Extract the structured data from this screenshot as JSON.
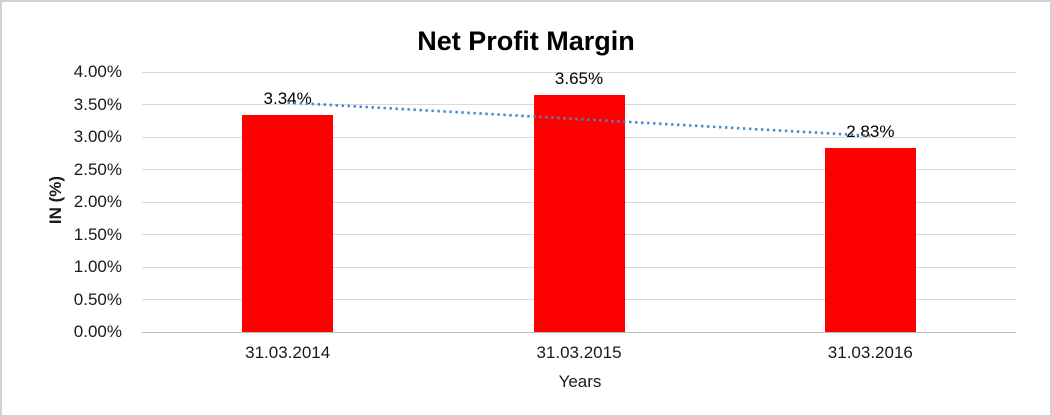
{
  "chart_data": {
    "type": "bar",
    "title": "Net Profit Margin",
    "categories": [
      "31.03.2014",
      "31.03.2015",
      "31.03.2016"
    ],
    "values": [
      3.34,
      3.65,
      2.83
    ],
    "data_labels": [
      "3.34%",
      "3.65%",
      "2.83%"
    ],
    "xlabel": "Years",
    "ylabel": "IN (%)",
    "ylim_percent": [
      0,
      4
    ],
    "ytick_labels": [
      "4.00%",
      "3.50%",
      "3.00%",
      "2.50%",
      "2.00%",
      "1.50%",
      "1.00%",
      "0.50%",
      "0.00%"
    ],
    "grid": true,
    "legend": "none",
    "bar_color": "#ff0000",
    "gridline_color": "#d9d9d9",
    "axis_line_color": "#bfbfbf",
    "tick_text_color": "#1a1a1a",
    "trendline": {
      "type": "linear",
      "style": "dotted",
      "color": "#4a86c8",
      "start_value_percent": 3.53,
      "end_value_percent": 3.02
    }
  }
}
